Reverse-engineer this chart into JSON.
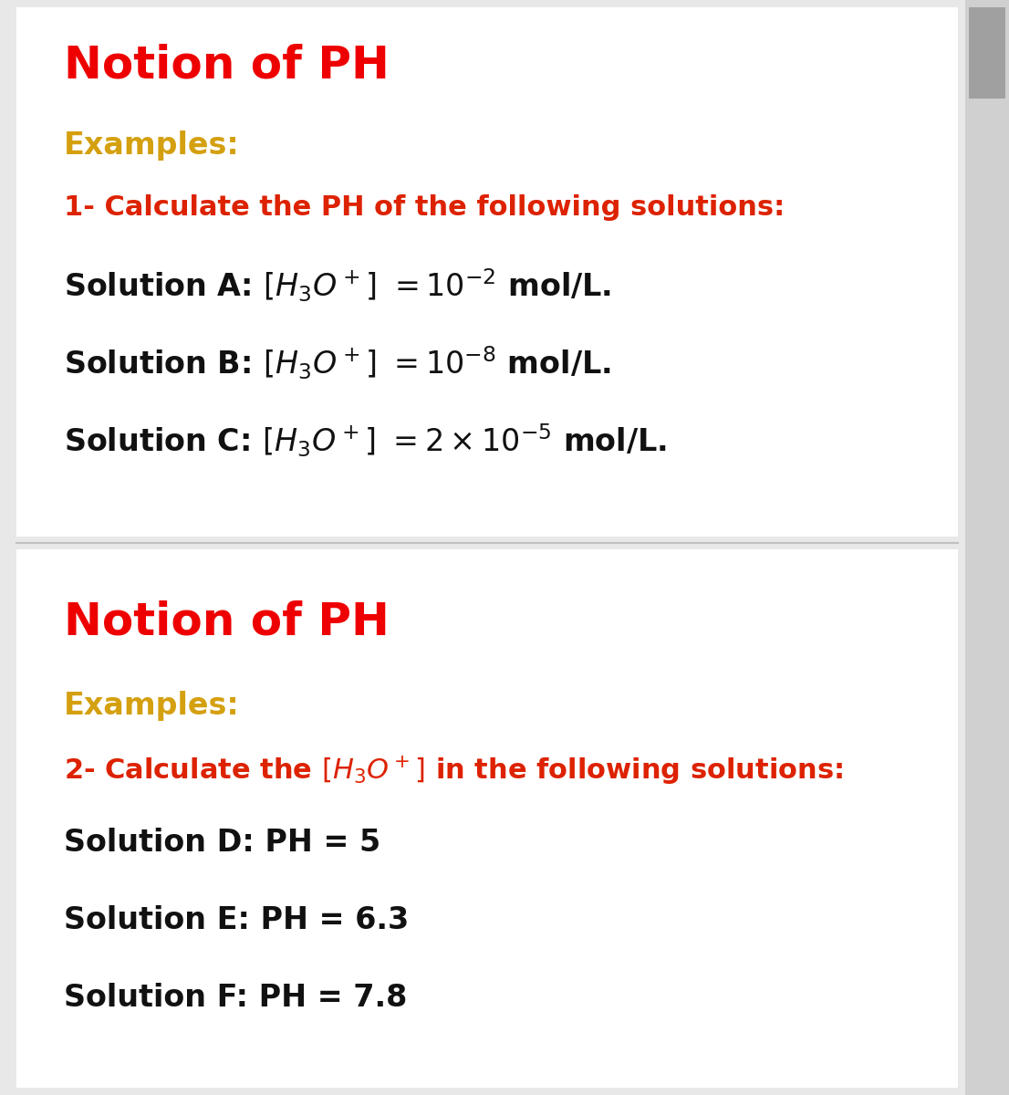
{
  "bg_color": "#e8e8e8",
  "panel_bg": "#ffffff",
  "title_color": "#ee0000",
  "examples_color": "#d4a010",
  "question_color": "#dd2200",
  "body_color": "#111111",
  "title": "Notion of PH",
  "examples_label": "Examples:",
  "divider_color": "#c0c0c0",
  "panel1_question": "1- Calculate the PH of the following solutions:",
  "panel1_lines_prefix": [
    "Solution A: ",
    "Solution B: ",
    "Solution C: "
  ],
  "panel1_lines_formula": [
    "$[H_3O^+]$",
    "$[H_3O^+]$",
    "$[H_3O^+]$"
  ],
  "panel1_lines_suffix": [
    " $= 10^{-2}$ mol/L.",
    " $= 10^{-8}$ mol/L.",
    " $= 2 \\times 10^{-5}$ mol/L."
  ],
  "panel2_question_prefix": "2- Calculate the ",
  "panel2_question_mid": "$[H_3O^+]$",
  "panel2_question_suffix": " in the following solutions:",
  "panel2_lines": [
    "Solution D: PH = 5",
    "Solution E: PH = 6.3",
    "Solution F: PH = 7.8"
  ],
  "title_fs": 36,
  "examples_fs": 24,
  "question_fs": 22,
  "body_fs": 24
}
